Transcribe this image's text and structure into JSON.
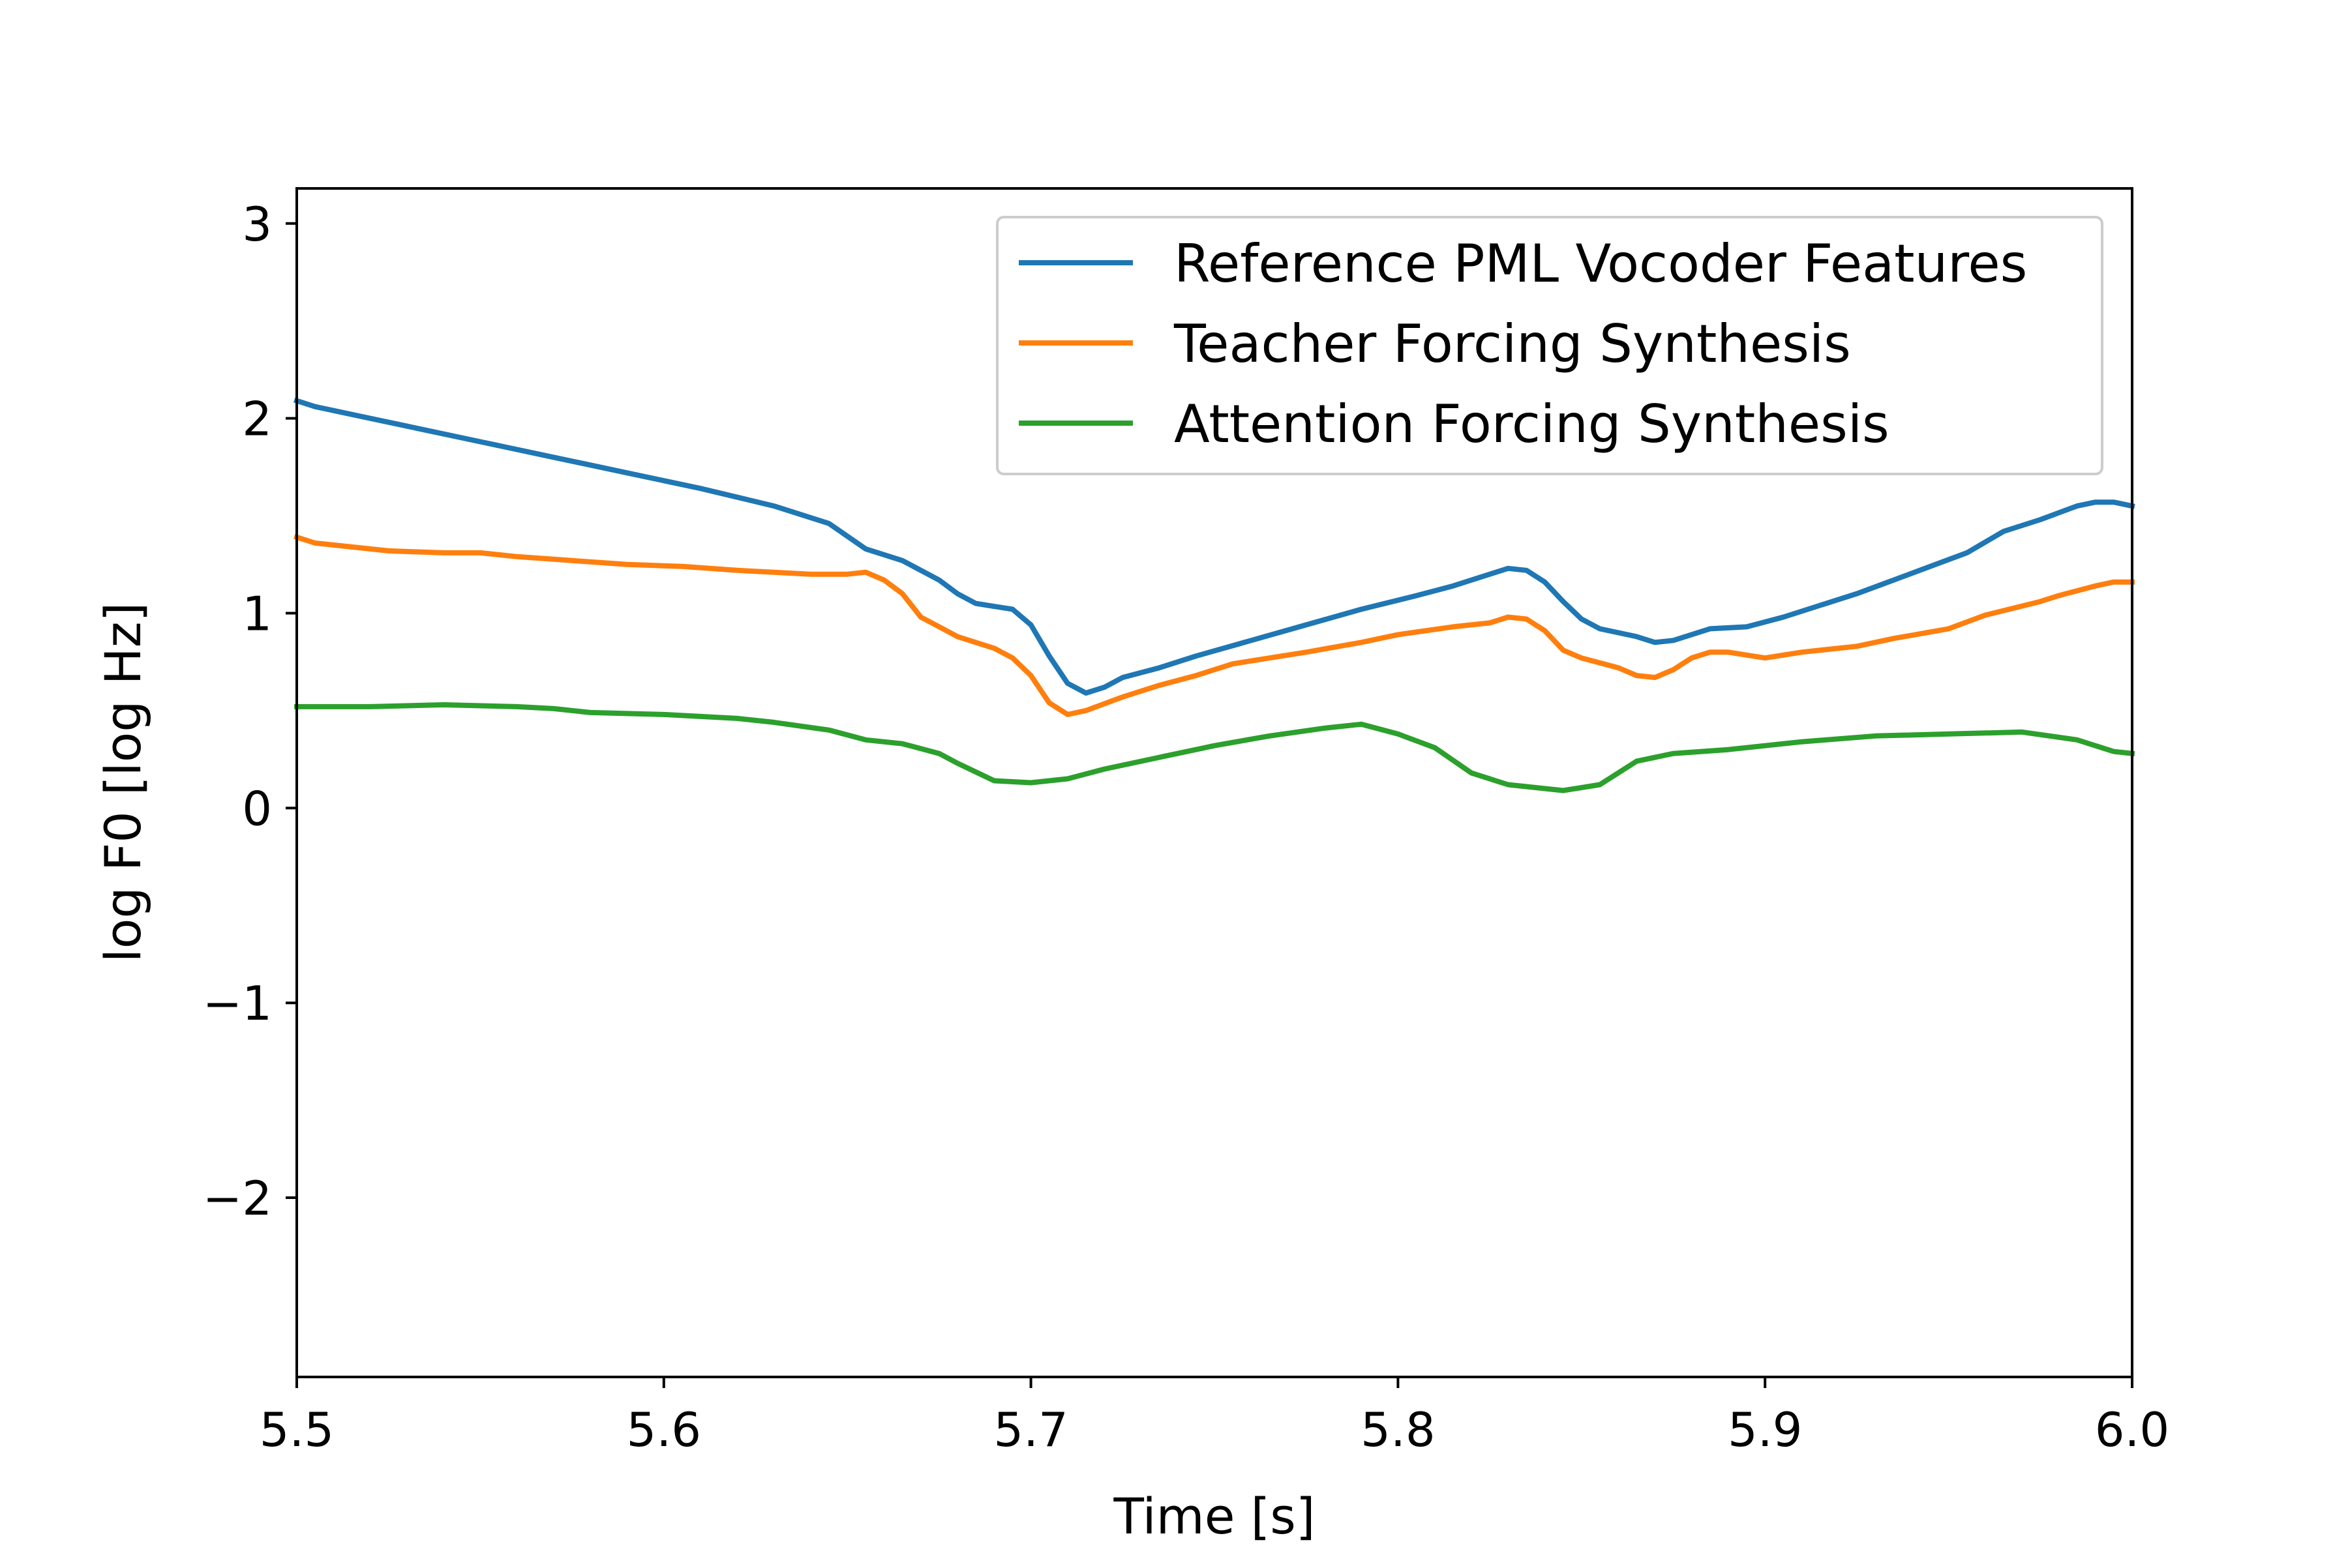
{
  "chart_data": {
    "type": "line",
    "title": "",
    "xlabel": "Time [s]",
    "ylabel": "log F0 [log Hz]",
    "xlim": [
      5.5,
      6.0
    ],
    "ylim": [
      -2.92,
      3.18
    ],
    "xticks": [
      5.5,
      5.6,
      5.7,
      5.8,
      5.9,
      6.0
    ],
    "xtick_labels": [
      "5.5",
      "5.6",
      "5.7",
      "5.8",
      "5.9",
      "6.0"
    ],
    "yticks": [
      -2,
      -1,
      0,
      1,
      2,
      3
    ],
    "ytick_labels": [
      "−2",
      "−1",
      "0",
      "1",
      "2",
      "3"
    ],
    "grid": false,
    "legend_position": "top-right",
    "series": [
      {
        "name": "Reference PML Vocoder Features",
        "color": "#1f77b4",
        "points": [
          [
            5.5,
            2.09
          ],
          [
            5.505,
            2.06
          ],
          [
            5.515,
            2.02
          ],
          [
            5.53,
            1.96
          ],
          [
            5.55,
            1.88
          ],
          [
            5.57,
            1.8
          ],
          [
            5.59,
            1.72
          ],
          [
            5.61,
            1.64
          ],
          [
            5.63,
            1.55
          ],
          [
            5.645,
            1.46
          ],
          [
            5.655,
            1.33
          ],
          [
            5.665,
            1.27
          ],
          [
            5.675,
            1.17
          ],
          [
            5.68,
            1.1
          ],
          [
            5.685,
            1.05
          ],
          [
            5.695,
            1.02
          ],
          [
            5.7,
            0.94
          ],
          [
            5.705,
            0.78
          ],
          [
            5.71,
            0.64
          ],
          [
            5.715,
            0.59
          ],
          [
            5.72,
            0.62
          ],
          [
            5.725,
            0.67
          ],
          [
            5.735,
            0.72
          ],
          [
            5.745,
            0.78
          ],
          [
            5.76,
            0.86
          ],
          [
            5.775,
            0.94
          ],
          [
            5.79,
            1.02
          ],
          [
            5.805,
            1.09
          ],
          [
            5.815,
            1.14
          ],
          [
            5.825,
            1.2
          ],
          [
            5.83,
            1.23
          ],
          [
            5.835,
            1.22
          ],
          [
            5.84,
            1.16
          ],
          [
            5.845,
            1.06
          ],
          [
            5.85,
            0.97
          ],
          [
            5.855,
            0.92
          ],
          [
            5.865,
            0.88
          ],
          [
            5.87,
            0.85
          ],
          [
            5.875,
            0.86
          ],
          [
            5.885,
            0.92
          ],
          [
            5.895,
            0.93
          ],
          [
            5.905,
            0.98
          ],
          [
            5.915,
            1.04
          ],
          [
            5.925,
            1.1
          ],
          [
            5.935,
            1.17
          ],
          [
            5.945,
            1.24
          ],
          [
            5.955,
            1.31
          ],
          [
            5.965,
            1.42
          ],
          [
            5.975,
            1.48
          ],
          [
            5.985,
            1.55
          ],
          [
            5.99,
            1.57
          ],
          [
            5.995,
            1.57
          ],
          [
            6.0,
            1.55
          ]
        ]
      },
      {
        "name": "Teacher Forcing Synthesis",
        "color": "#ff7f0e",
        "points": [
          [
            5.5,
            1.39
          ],
          [
            5.505,
            1.36
          ],
          [
            5.515,
            1.34
          ],
          [
            5.525,
            1.32
          ],
          [
            5.54,
            1.31
          ],
          [
            5.55,
            1.31
          ],
          [
            5.56,
            1.29
          ],
          [
            5.575,
            1.27
          ],
          [
            5.59,
            1.25
          ],
          [
            5.605,
            1.24
          ],
          [
            5.62,
            1.22
          ],
          [
            5.63,
            1.21
          ],
          [
            5.64,
            1.2
          ],
          [
            5.65,
            1.2
          ],
          [
            5.655,
            1.21
          ],
          [
            5.66,
            1.17
          ],
          [
            5.665,
            1.1
          ],
          [
            5.67,
            0.98
          ],
          [
            5.675,
            0.93
          ],
          [
            5.68,
            0.88
          ],
          [
            5.69,
            0.82
          ],
          [
            5.695,
            0.77
          ],
          [
            5.7,
            0.68
          ],
          [
            5.705,
            0.54
          ],
          [
            5.71,
            0.48
          ],
          [
            5.715,
            0.5
          ],
          [
            5.725,
            0.57
          ],
          [
            5.735,
            0.63
          ],
          [
            5.745,
            0.68
          ],
          [
            5.755,
            0.74
          ],
          [
            5.765,
            0.77
          ],
          [
            5.775,
            0.8
          ],
          [
            5.79,
            0.85
          ],
          [
            5.8,
            0.89
          ],
          [
            5.815,
            0.93
          ],
          [
            5.825,
            0.95
          ],
          [
            5.83,
            0.98
          ],
          [
            5.835,
            0.97
          ],
          [
            5.84,
            0.91
          ],
          [
            5.845,
            0.81
          ],
          [
            5.85,
            0.77
          ],
          [
            5.86,
            0.72
          ],
          [
            5.865,
            0.68
          ],
          [
            5.87,
            0.67
          ],
          [
            5.875,
            0.71
          ],
          [
            5.88,
            0.77
          ],
          [
            5.885,
            0.8
          ],
          [
            5.89,
            0.8
          ],
          [
            5.9,
            0.77
          ],
          [
            5.91,
            0.8
          ],
          [
            5.925,
            0.83
          ],
          [
            5.935,
            0.87
          ],
          [
            5.95,
            0.92
          ],
          [
            5.96,
            0.99
          ],
          [
            5.975,
            1.06
          ],
          [
            5.98,
            1.09
          ],
          [
            5.99,
            1.14
          ],
          [
            5.995,
            1.16
          ],
          [
            6.0,
            1.16
          ]
        ]
      },
      {
        "name": "Attention Forcing Synthesis",
        "color": "#2ca02c",
        "points": [
          [
            5.5,
            0.52
          ],
          [
            5.52,
            0.52
          ],
          [
            5.54,
            0.53
          ],
          [
            5.56,
            0.52
          ],
          [
            5.57,
            0.51
          ],
          [
            5.58,
            0.49
          ],
          [
            5.6,
            0.48
          ],
          [
            5.62,
            0.46
          ],
          [
            5.63,
            0.44
          ],
          [
            5.645,
            0.4
          ],
          [
            5.655,
            0.35
          ],
          [
            5.665,
            0.33
          ],
          [
            5.675,
            0.28
          ],
          [
            5.68,
            0.23
          ],
          [
            5.69,
            0.14
          ],
          [
            5.7,
            0.13
          ],
          [
            5.71,
            0.15
          ],
          [
            5.72,
            0.2
          ],
          [
            5.735,
            0.26
          ],
          [
            5.75,
            0.32
          ],
          [
            5.765,
            0.37
          ],
          [
            5.78,
            0.41
          ],
          [
            5.79,
            0.43
          ],
          [
            5.8,
            0.38
          ],
          [
            5.81,
            0.31
          ],
          [
            5.82,
            0.18
          ],
          [
            5.83,
            0.12
          ],
          [
            5.845,
            0.09
          ],
          [
            5.855,
            0.12
          ],
          [
            5.865,
            0.24
          ],
          [
            5.875,
            0.28
          ],
          [
            5.89,
            0.3
          ],
          [
            5.91,
            0.34
          ],
          [
            5.93,
            0.37
          ],
          [
            5.95,
            0.38
          ],
          [
            5.97,
            0.39
          ],
          [
            5.985,
            0.35
          ],
          [
            5.995,
            0.29
          ],
          [
            6.0,
            0.28
          ]
        ]
      }
    ]
  }
}
